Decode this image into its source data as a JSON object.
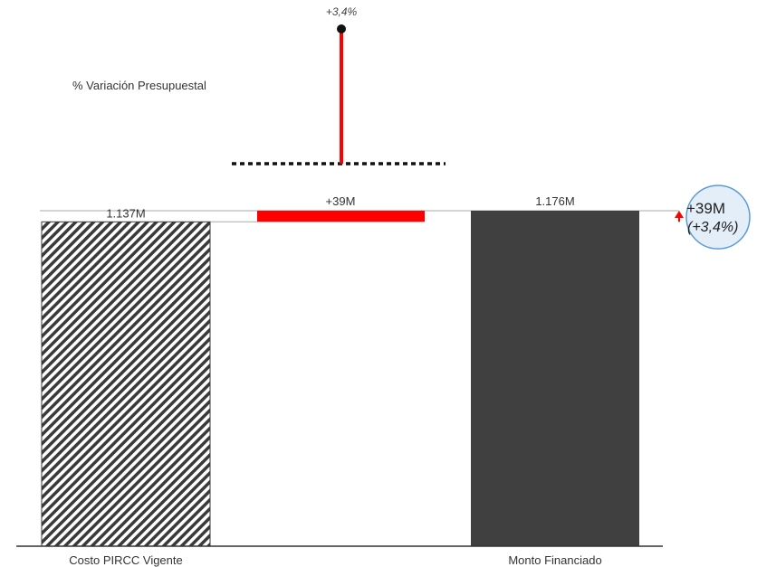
{
  "chart_data": {
    "type": "bar",
    "subtype": "waterfall",
    "categories": [
      "Costo PIRCC Vigente",
      "",
      "Monto Financiado"
    ],
    "values": [
      1137,
      39,
      1176
    ],
    "value_unit": "M",
    "data_labels": [
      "1.137M",
      "+39M",
      "1.176M"
    ],
    "variance_chart": {
      "title": "% Variación Presupuestal",
      "value": 3.4,
      "label": "+3,4%"
    },
    "variance_bubble": {
      "main": "+39M",
      "sub": "(+3,4%)"
    },
    "ylim": [
      0,
      1176
    ],
    "colors": {
      "base_hatch": "#3a3a3a",
      "increase": "#ff0000",
      "total": "#404040",
      "bubble_fill": "#e4eef9",
      "bubble_stroke": "#5b9bd5",
      "axis": "#333333"
    }
  }
}
